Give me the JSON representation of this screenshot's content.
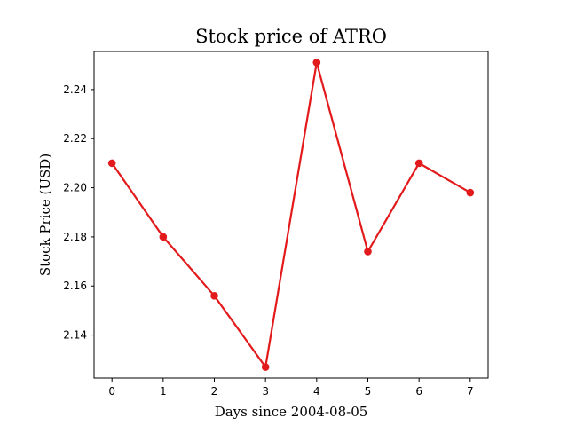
{
  "chart_data": {
    "type": "line",
    "title": "Stock price of ATRO",
    "xlabel": "Days since 2004-08-05",
    "ylabel": "Stock Price (USD)",
    "x": [
      0,
      1,
      2,
      3,
      4,
      5,
      6,
      7
    ],
    "series": [
      {
        "values": [
          2.21,
          2.18,
          2.156,
          2.127,
          2.251,
          2.174,
          2.21,
          2.198
        ],
        "color": "#e31a1c"
      }
    ],
    "xlim": [
      -0.35,
      7.35
    ],
    "ylim": [
      2.1225,
      2.2555
    ],
    "xticks": [
      0,
      1,
      2,
      3,
      4,
      5,
      6,
      7
    ],
    "yticks": [
      2.14,
      2.16,
      2.18,
      2.2,
      2.22,
      2.24
    ],
    "grid": false,
    "legend": false
  }
}
